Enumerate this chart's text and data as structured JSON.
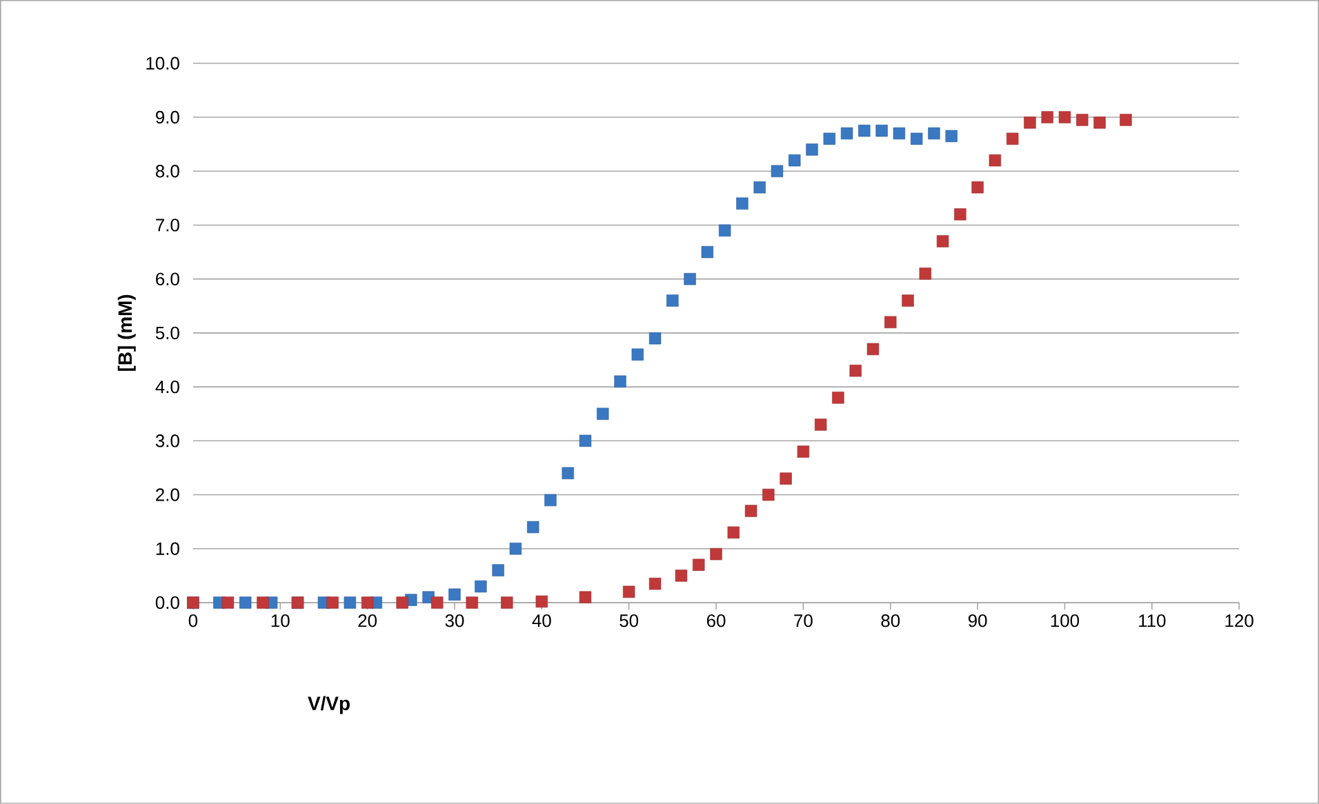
{
  "chart_data": {
    "type": "scatter",
    "xlabel": "V/Vp",
    "ylabel": "[B] (mM)",
    "marker": "square",
    "grid": "y",
    "xlim": [
      0,
      120
    ],
    "ylim": [
      0,
      10
    ],
    "xticks": [
      0,
      10,
      20,
      30,
      40,
      50,
      60,
      70,
      80,
      90,
      100,
      110,
      120
    ],
    "yticks": [
      {
        "value": 0,
        "label": "0.0"
      },
      {
        "value": 1,
        "label": "1.0"
      },
      {
        "value": 2,
        "label": "2.0"
      },
      {
        "value": 3,
        "label": "3.0"
      },
      {
        "value": 4,
        "label": "4.0"
      },
      {
        "value": 5,
        "label": "5.0"
      },
      {
        "value": 6,
        "label": "6.0"
      },
      {
        "value": 7,
        "label": "7.0"
      },
      {
        "value": 8,
        "label": "8.0"
      },
      {
        "value": 9,
        "label": "9.0"
      },
      {
        "value": 10,
        "label": "10.0"
      }
    ],
    "series": [
      {
        "color": "#3a78c2",
        "x": [
          0,
          3,
          6,
          9,
          12,
          15,
          18,
          21,
          25,
          27,
          30,
          33,
          35,
          37,
          39,
          41,
          43,
          45,
          47,
          49,
          51,
          53,
          55,
          57,
          59,
          61,
          63,
          65,
          67,
          69,
          71,
          73,
          75,
          77,
          79,
          81,
          83,
          85,
          87
        ],
        "values": [
          0,
          0,
          0,
          0,
          0,
          0,
          0,
          0,
          0.05,
          0.1,
          0.15,
          0.3,
          0.6,
          1.0,
          1.4,
          1.9,
          2.4,
          3.0,
          3.5,
          4.1,
          4.6,
          4.9,
          5.6,
          6.0,
          6.5,
          6.9,
          7.4,
          7.7,
          8.0,
          8.2,
          8.4,
          8.6,
          8.7,
          8.75,
          8.75,
          8.7,
          8.6,
          8.7,
          8.65
        ]
      },
      {
        "color": "#c0393a",
        "x": [
          0,
          4,
          8,
          12,
          16,
          20,
          24,
          28,
          32,
          36,
          40,
          45,
          50,
          53,
          56,
          58,
          60,
          62,
          64,
          66,
          68,
          70,
          72,
          74,
          76,
          78,
          80,
          82,
          84,
          86,
          88,
          90,
          92,
          94,
          96,
          98,
          100,
          102,
          104,
          107
        ],
        "values": [
          0,
          0,
          0,
          0,
          0,
          0,
          0,
          0,
          0,
          0,
          0.02,
          0.1,
          0.2,
          0.35,
          0.5,
          0.7,
          0.9,
          1.3,
          1.7,
          2.0,
          2.3,
          2.8,
          3.3,
          3.8,
          4.3,
          4.7,
          5.2,
          5.6,
          6.1,
          6.7,
          7.2,
          7.7,
          8.2,
          8.6,
          8.9,
          9.0,
          9.0,
          8.95,
          8.9,
          8.95
        ]
      }
    ]
  }
}
